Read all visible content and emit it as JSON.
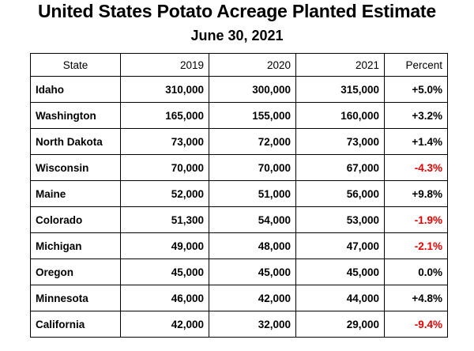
{
  "title": "United States Potato Acreage Planted Estimate",
  "subtitle": "June 30, 2021",
  "colors": {
    "negative": "#e00000",
    "text": "#000000",
    "border": "#000000"
  },
  "chart_data": {
    "type": "table",
    "title": "United States Potato Acreage Planted Estimate",
    "subtitle": "June 30, 2021",
    "columns": [
      "State",
      "2019",
      "2020",
      "2021",
      "Percent"
    ],
    "rows": [
      {
        "state": "Idaho",
        "y2019": "310,000",
        "y2020": "300,000",
        "y2021": "315,000",
        "percent": "+5.0%",
        "negative": false
      },
      {
        "state": "Washington",
        "y2019": "165,000",
        "y2020": "155,000",
        "y2021": "160,000",
        "percent": "+3.2%",
        "negative": false
      },
      {
        "state": "North Dakota",
        "y2019": "73,000",
        "y2020": "72,000",
        "y2021": "73,000",
        "percent": "+1.4%",
        "negative": false
      },
      {
        "state": "Wisconsin",
        "y2019": "70,000",
        "y2020": "70,000",
        "y2021": "67,000",
        "percent": "-4.3%",
        "negative": true
      },
      {
        "state": "Maine",
        "y2019": "52,000",
        "y2020": "51,000",
        "y2021": "56,000",
        "percent": "+9.8%",
        "negative": false
      },
      {
        "state": "Colorado",
        "y2019": "51,300",
        "y2020": "54,000",
        "y2021": "53,000",
        "percent": "-1.9%",
        "negative": true
      },
      {
        "state": "Michigan",
        "y2019": "49,000",
        "y2020": "48,000",
        "y2021": "47,000",
        "percent": "-2.1%",
        "negative": true
      },
      {
        "state": "Oregon",
        "y2019": "45,000",
        "y2020": "45,000",
        "y2021": "45,000",
        "percent": "0.0%",
        "negative": false
      },
      {
        "state": "Minnesota",
        "y2019": "46,000",
        "y2020": "42,000",
        "y2021": "44,000",
        "percent": "+4.8%",
        "negative": false
      },
      {
        "state": "California",
        "y2019": "42,000",
        "y2020": "32,000",
        "y2021": "29,000",
        "percent": "-9.4%",
        "negative": true
      }
    ]
  }
}
